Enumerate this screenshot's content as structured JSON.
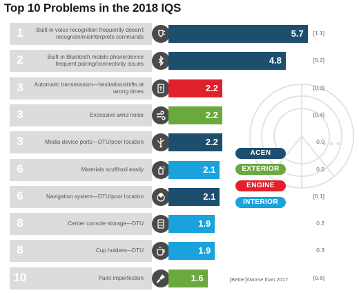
{
  "title": "Top 10 Problems in the 2018 IQS",
  "colors": {
    "ACEN": "#1d4e6e",
    "EXTERIOR": "#6aa93e",
    "ENGINE": "#e0202b",
    "INTERIOR": "#1aa2dc",
    "row_bg": "#dcdcdc",
    "icon_bg": "#4a4a4a"
  },
  "legend": [
    "ACEN",
    "EXTERIOR",
    "ENGINE",
    "INTERIOR"
  ],
  "footnote": "[Better]/Worse than 2017",
  "chart_data": {
    "type": "bar",
    "title": "Top 10 Problems in the 2018 IQS",
    "categories": [
      "Built-in voice recognition frequently doesn't recognize/misinterprets commands",
      "Built-in Bluetooth mobile phone/device frequent pairing/connectivity issues",
      "Automatic transmission—hesitation/shifts at wrong times",
      "Excessive wind noise",
      "Media device ports—DTU/poor location",
      "Materials scuff/soil easily",
      "Navigation system—DTU/poor location",
      "Center console storage—DTU",
      "Cup holders—DTU",
      "Paint imperfection"
    ],
    "ranks": [
      "1",
      "2",
      "3",
      "3",
      "3",
      "6",
      "6",
      "8",
      "8",
      "10"
    ],
    "values": [
      5.7,
      4.8,
      2.2,
      2.2,
      2.2,
      2.1,
      2.1,
      1.9,
      1.9,
      1.6
    ],
    "value_labels": [
      "5.7",
      "4.8",
      "2.2",
      "2.2",
      "2.2",
      "2.1",
      "2.1",
      "1.9",
      "1.9",
      "1.6"
    ],
    "change_vs_2017": [
      "[1.1]",
      "[0.2]",
      "[0.3]",
      "[0.4]",
      "0.0",
      "0.0",
      "[0.1]",
      "0.2",
      "0.3",
      "[0.6]"
    ],
    "category_groups": [
      "ACEN",
      "ACEN",
      "ENGINE",
      "EXTERIOR",
      "ACEN",
      "INTERIOR",
      "ACEN",
      "INTERIOR",
      "INTERIOR",
      "EXTERIOR"
    ],
    "icons": [
      "voice-icon",
      "bluetooth-icon",
      "transmission-icon",
      "wind-icon",
      "usb-icon",
      "spray-icon",
      "navigation-icon",
      "console-icon",
      "cup-icon",
      "paintbrush-icon"
    ],
    "legend_placement": "center-right",
    "grid": false
  }
}
